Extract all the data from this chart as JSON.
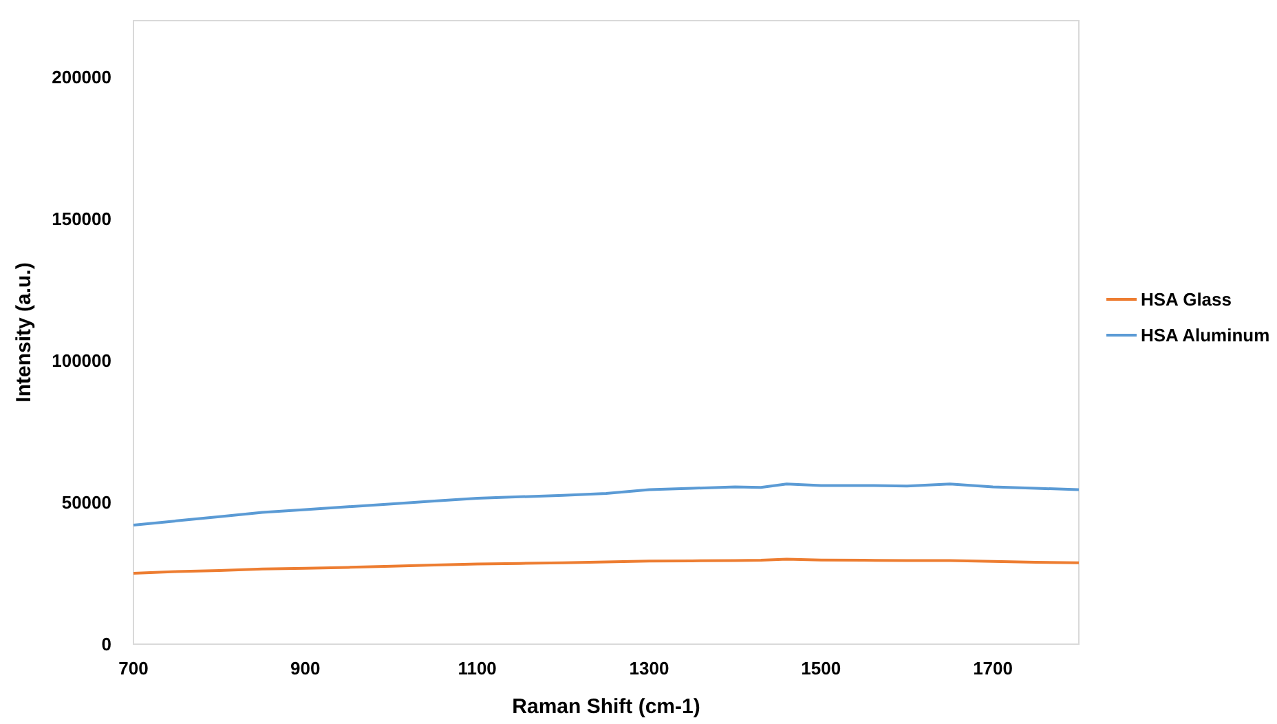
{
  "chart_data": {
    "type": "line",
    "xlabel": "Raman Shift (cm-1)",
    "ylabel": "Intensity (a.u.)",
    "x": [
      700,
      750,
      800,
      850,
      900,
      950,
      1000,
      1050,
      1100,
      1150,
      1200,
      1250,
      1300,
      1350,
      1400,
      1430,
      1460,
      1500,
      1550,
      1600,
      1650,
      1700,
      1750,
      1800
    ],
    "xlim": [
      700,
      1800
    ],
    "xticks": [
      700,
      900,
      1100,
      1300,
      1500,
      1700
    ],
    "ylim": [
      0,
      220000
    ],
    "yticks": [
      0,
      50000,
      100000,
      150000,
      200000
    ],
    "grid": false,
    "legend": "right",
    "line_style": "solid",
    "marker": "none",
    "series": [
      {
        "name": "HSA Glass",
        "color": "#ed7d31",
        "values": [
          25000,
          25600,
          26000,
          26500,
          26800,
          27100,
          27500,
          27900,
          28300,
          28500,
          28700,
          29000,
          29300,
          29400,
          29500,
          29600,
          30000,
          29700,
          29600,
          29500,
          29500,
          29200,
          28900,
          28700
        ]
      },
      {
        "name": "HSA Aluminum",
        "color": "#5b9bd5",
        "values": [
          42000,
          43500,
          45000,
          46500,
          47500,
          48500,
          49500,
          50500,
          51500,
          52000,
          52500,
          53200,
          54500,
          55000,
          55500,
          55300,
          56500,
          56000,
          56000,
          55800,
          56500,
          55500,
          55000,
          54500
        ]
      }
    ]
  }
}
